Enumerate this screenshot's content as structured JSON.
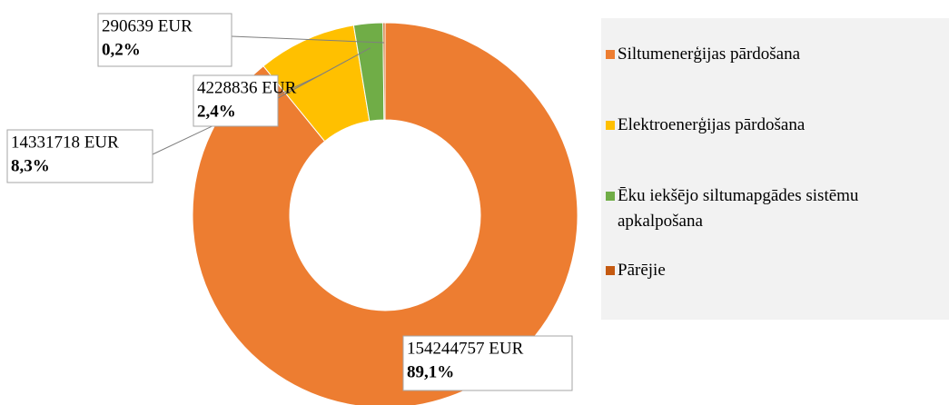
{
  "chart_data": {
    "type": "donut",
    "categories": [
      "Siltumenerģijas pārdošana",
      "Elektroenerģijas pārdošana",
      "Ēku iekšējo siltumapgādes sistēmu apkalpošana",
      "Pārējie"
    ],
    "values": [
      154244757,
      14331718,
      4228836,
      290639
    ],
    "value_labels": [
      "154244757 EUR",
      "14331718 EUR",
      "4228836 EUR",
      "290639 EUR"
    ],
    "percents": [
      89.1,
      8.3,
      2.4,
      0.2
    ],
    "percent_labels": [
      "89,1%",
      "8,3%",
      "2,4%",
      "0,2%"
    ],
    "colors": [
      "#ed7d31",
      "#ffc000",
      "#70ad47",
      "#c55a11"
    ],
    "legend": "right"
  }
}
